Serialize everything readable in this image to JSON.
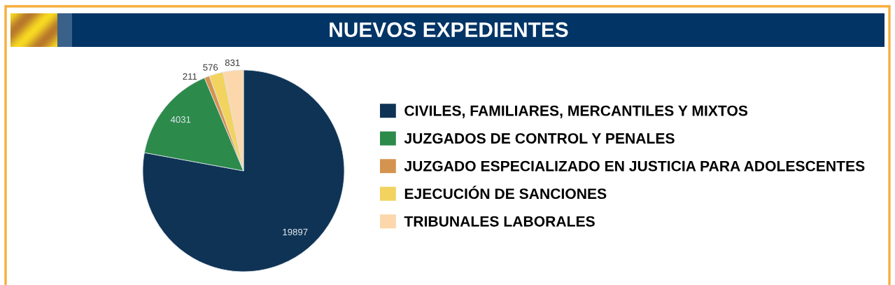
{
  "chart_data": {
    "type": "pie",
    "title": "NUEVOS EXPEDIENTES",
    "categories": [
      "CIVILES, FAMILIARES, MERCANTILES Y MIXTOS",
      "JUZGADOS DE CONTROL Y PENALES",
      "JUZGADO ESPECIALIZADO EN JUSTICIA PARA ADOLESCENTES",
      "EJECUCIÓN DE SANCIONES",
      "TRIBUNALES LABORALES"
    ],
    "values": [
      19897,
      4031,
      211,
      576,
      831
    ],
    "colors": [
      "#0f3354",
      "#2c8a4b",
      "#d4934f",
      "#f3d35f",
      "#fcd7ab"
    ],
    "data_labels": true,
    "legend": "right"
  }
}
